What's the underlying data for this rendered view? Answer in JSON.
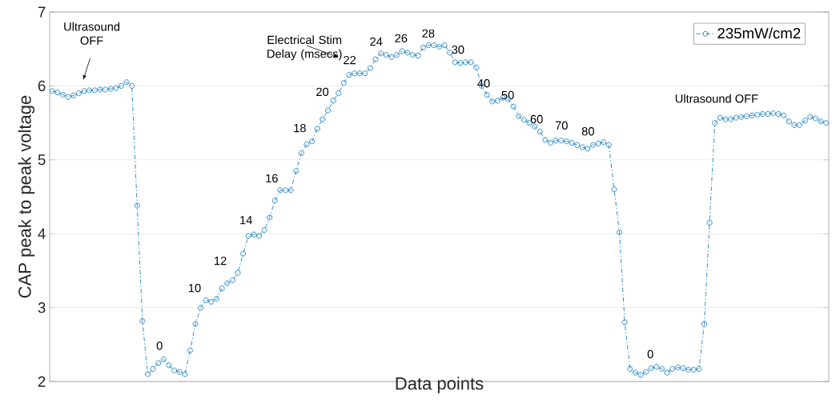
{
  "chart_data": {
    "type": "line",
    "xlabel": "Data points",
    "ylabel": "CAP peak to peak voltage",
    "categories": [
      null,
      null,
      null,
      null,
      null,
      null,
      null,
      null,
      null,
      null,
      null,
      null,
      null,
      null,
      null,
      null,
      null,
      null,
      null,
      null,
      null,
      null,
      null,
      null,
      null,
      null,
      null,
      null,
      null,
      null,
      null,
      null,
      null,
      null,
      null,
      null,
      null,
      null,
      null,
      null,
      null,
      null,
      null,
      null,
      null,
      null,
      null,
      null,
      null,
      null,
      null,
      null,
      null,
      null,
      null,
      null,
      null,
      null,
      null,
      null,
      null,
      null,
      null,
      null,
      null,
      null,
      null,
      null,
      null,
      null,
      null,
      null,
      null,
      null,
      null,
      null,
      null,
      null,
      null,
      null,
      null,
      null,
      null,
      null,
      null,
      null,
      null,
      null,
      null,
      null,
      null,
      null,
      null,
      null,
      null,
      null,
      null,
      null,
      null,
      null,
      null,
      null,
      null,
      null,
      null,
      null,
      null,
      null,
      null,
      null,
      null,
      null,
      null,
      null,
      null,
      null,
      null,
      null,
      null,
      null,
      null,
      null,
      null,
      null,
      null,
      null,
      null,
      null,
      null,
      null,
      null,
      null,
      null,
      null,
      null,
      null,
      null,
      null,
      null,
      null,
      null,
      null,
      null,
      null,
      null,
      null,
      null
    ],
    "series": [
      {
        "name": "235mW/cm2",
        "color": "#0072bd",
        "values": [
          5.93,
          5.91,
          5.88,
          5.85,
          5.87,
          5.9,
          5.93,
          5.94,
          5.94,
          5.95,
          5.95,
          5.96,
          5.97,
          6.0,
          6.05,
          6.0,
          4.38,
          2.82,
          2.1,
          2.17,
          2.25,
          2.3,
          2.22,
          2.15,
          2.13,
          2.1,
          2.42,
          2.78,
          3.0,
          3.1,
          3.08,
          3.12,
          3.26,
          3.33,
          3.37,
          3.47,
          3.73,
          3.97,
          3.99,
          3.97,
          4.05,
          4.22,
          4.45,
          4.59,
          4.59,
          4.59,
          4.85,
          5.09,
          5.21,
          5.25,
          5.42,
          5.55,
          5.67,
          5.8,
          5.9,
          6.04,
          6.15,
          6.17,
          6.17,
          6.17,
          6.24,
          6.36,
          6.44,
          6.42,
          6.39,
          6.42,
          6.47,
          6.45,
          6.42,
          6.41,
          6.52,
          6.55,
          6.55,
          6.53,
          6.55,
          6.45,
          6.32,
          6.31,
          6.32,
          6.32,
          6.25,
          6.0,
          5.88,
          5.79,
          5.8,
          5.84,
          5.82,
          5.72,
          5.59,
          5.54,
          5.5,
          5.45,
          5.38,
          5.27,
          5.23,
          5.26,
          5.26,
          5.25,
          5.23,
          5.2,
          5.17,
          5.15,
          5.2,
          5.22,
          5.24,
          5.2,
          4.6,
          4.02,
          2.8,
          2.17,
          2.12,
          2.09,
          2.13,
          2.18,
          2.2,
          2.17,
          2.12,
          2.17,
          2.19,
          2.18,
          2.16,
          2.16,
          2.17,
          2.78,
          4.15,
          5.5,
          5.57,
          5.55,
          5.55,
          5.57,
          5.58,
          5.59,
          5.6,
          5.61,
          5.62,
          5.62,
          5.63,
          5.62,
          5.6,
          5.52,
          5.47,
          5.47,
          5.53,
          5.58,
          5.56,
          5.52,
          5.5
        ]
      }
    ],
    "ylim": [
      2,
      7
    ],
    "yticks": [
      2,
      3,
      4,
      5,
      6,
      7
    ],
    "grid": "y",
    "legend": "top right",
    "marker": "circle",
    "line_style": "dashdot",
    "annotations": [
      "Ultrasound OFF",
      "Electrical Stim Delay (msecs)",
      "0",
      "10",
      "12",
      "14",
      "16",
      "18",
      "20",
      "22",
      "24",
      "26",
      "28",
      "30",
      "40",
      "50",
      "60",
      "70",
      "80",
      "0",
      "Ultrasound OFF"
    ]
  }
}
